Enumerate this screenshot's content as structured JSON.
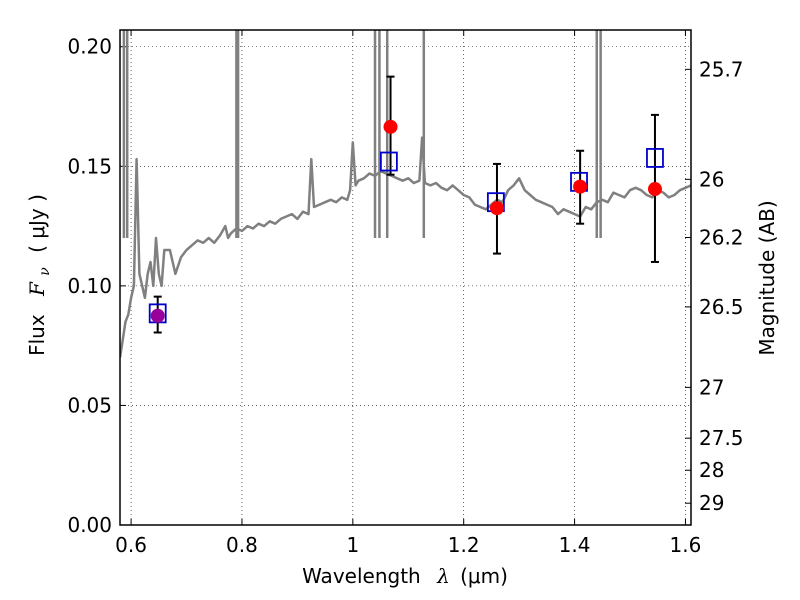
{
  "chart_data": {
    "type": "scatter",
    "xlabel_text": "Wavelength",
    "xlabel_symbol": "λ",
    "xlabel_unit": "(μm)",
    "ylabel_text": "Flux",
    "ylabel_symbol": "F",
    "ylabel_subscript": "ν",
    "ylabel_unit": "( μJy )",
    "y2label": "Magnitude (AB)",
    "xlim": [
      0.58,
      1.61
    ],
    "ylim": [
      0.0,
      0.207
    ],
    "xticks": [
      0.6,
      0.8,
      1.0,
      1.2,
      1.4,
      1.6
    ],
    "xtick_labels": [
      "0.6",
      "0.8",
      "1",
      "1.2",
      "1.4",
      "1.6"
    ],
    "yticks": [
      0.0,
      0.05,
      0.1,
      0.15,
      0.2
    ],
    "ytick_labels": [
      "0.00",
      "0.05",
      "0.10",
      "0.15",
      "0.20"
    ],
    "y2ticks": [
      25.7,
      26,
      26.2,
      26.5,
      27,
      27.5,
      28,
      29
    ],
    "y2tick_labels": [
      "25.7",
      "26",
      "26.2",
      "26.5",
      "27",
      "27.5",
      "28",
      "29"
    ],
    "grid": true,
    "grid_style": "dotted",
    "series": [
      {
        "style": "line",
        "color": "#808080",
        "x": [
          0.58,
          0.59,
          0.595,
          0.6,
          0.605,
          0.61,
          0.615,
          0.62,
          0.625,
          0.63,
          0.635,
          0.64,
          0.645,
          0.65,
          0.655,
          0.66,
          0.67,
          0.68,
          0.69,
          0.7,
          0.71,
          0.72,
          0.73,
          0.74,
          0.75,
          0.76,
          0.77,
          0.775,
          0.78,
          0.79,
          0.8,
          0.81,
          0.82,
          0.83,
          0.84,
          0.85,
          0.86,
          0.87,
          0.88,
          0.89,
          0.9,
          0.91,
          0.92,
          0.925,
          0.93,
          0.94,
          0.95,
          0.96,
          0.97,
          0.98,
          0.99,
          0.995,
          1.0,
          1.005,
          1.01,
          1.02,
          1.03,
          1.04,
          1.05,
          1.06,
          1.07,
          1.08,
          1.09,
          1.1,
          1.11,
          1.12,
          1.125,
          1.13,
          1.14,
          1.15,
          1.16,
          1.17,
          1.18,
          1.19,
          1.2,
          1.21,
          1.22,
          1.23,
          1.24,
          1.25,
          1.26,
          1.27,
          1.28,
          1.29,
          1.3,
          1.31,
          1.32,
          1.33,
          1.34,
          1.35,
          1.36,
          1.37,
          1.38,
          1.39,
          1.4,
          1.41,
          1.42,
          1.43,
          1.44,
          1.45,
          1.46,
          1.47,
          1.48,
          1.49,
          1.5,
          1.51,
          1.52,
          1.53,
          1.54,
          1.55,
          1.56,
          1.57,
          1.58,
          1.59,
          1.6,
          1.61
        ],
        "y": [
          0.07,
          0.085,
          0.088,
          0.095,
          0.1,
          0.153,
          0.105,
          0.1,
          0.095,
          0.105,
          0.11,
          0.1,
          0.12,
          0.105,
          0.1,
          0.115,
          0.115,
          0.105,
          0.112,
          0.115,
          0.117,
          0.119,
          0.118,
          0.12,
          0.118,
          0.121,
          0.125,
          0.12,
          0.122,
          0.124,
          0.123,
          0.125,
          0.124,
          0.126,
          0.125,
          0.127,
          0.126,
          0.128,
          0.129,
          0.13,
          0.128,
          0.131,
          0.13,
          0.153,
          0.133,
          0.134,
          0.135,
          0.136,
          0.135,
          0.137,
          0.136,
          0.14,
          0.16,
          0.142,
          0.144,
          0.145,
          0.147,
          0.146,
          0.148,
          0.147,
          0.146,
          0.145,
          0.144,
          0.145,
          0.143,
          0.144,
          0.162,
          0.143,
          0.142,
          0.143,
          0.141,
          0.14,
          0.142,
          0.14,
          0.138,
          0.137,
          0.134,
          0.133,
          0.132,
          0.134,
          0.136,
          0.135,
          0.14,
          0.142,
          0.145,
          0.14,
          0.138,
          0.136,
          0.135,
          0.134,
          0.133,
          0.13,
          0.132,
          0.131,
          0.13,
          0.129,
          0.133,
          0.132,
          0.135,
          0.136,
          0.135,
          0.139,
          0.138,
          0.137,
          0.14,
          0.141,
          0.14,
          0.138,
          0.137,
          0.14,
          0.139,
          0.137,
          0.138,
          0.14,
          0.141,
          0.142
        ]
      },
      {
        "style": "line_spikes",
        "color": "#808080",
        "x": [
          0.587,
          0.593,
          0.79,
          0.793,
          1.04,
          1.048,
          1.062,
          1.128,
          1.44,
          1.447
        ],
        "y": [
          0.207,
          0.207,
          0.207,
          0.207,
          0.207,
          0.207,
          0.207,
          0.207,
          0.207,
          0.207
        ]
      },
      {
        "style": "squares",
        "color": "#0000cc",
        "x": [
          0.648,
          1.065,
          1.258,
          1.408,
          1.545
        ],
        "y": [
          0.0885,
          0.152,
          0.135,
          0.1435,
          0.1535
        ]
      },
      {
        "style": "circles_errorbars",
        "color": "#ff0000",
        "x": [
          0.648,
          1.068,
          1.26,
          1.41,
          1.545
        ],
        "y": [
          0.0875,
          0.1665,
          0.1325,
          0.1415,
          0.1405
        ],
        "yerr_low": [
          0.007,
          0.02,
          0.019,
          0.0155,
          0.0305
        ],
        "yerr_high": [
          0.008,
          0.021,
          0.0185,
          0.015,
          0.031
        ]
      }
    ],
    "overlap_color": "#990099"
  }
}
